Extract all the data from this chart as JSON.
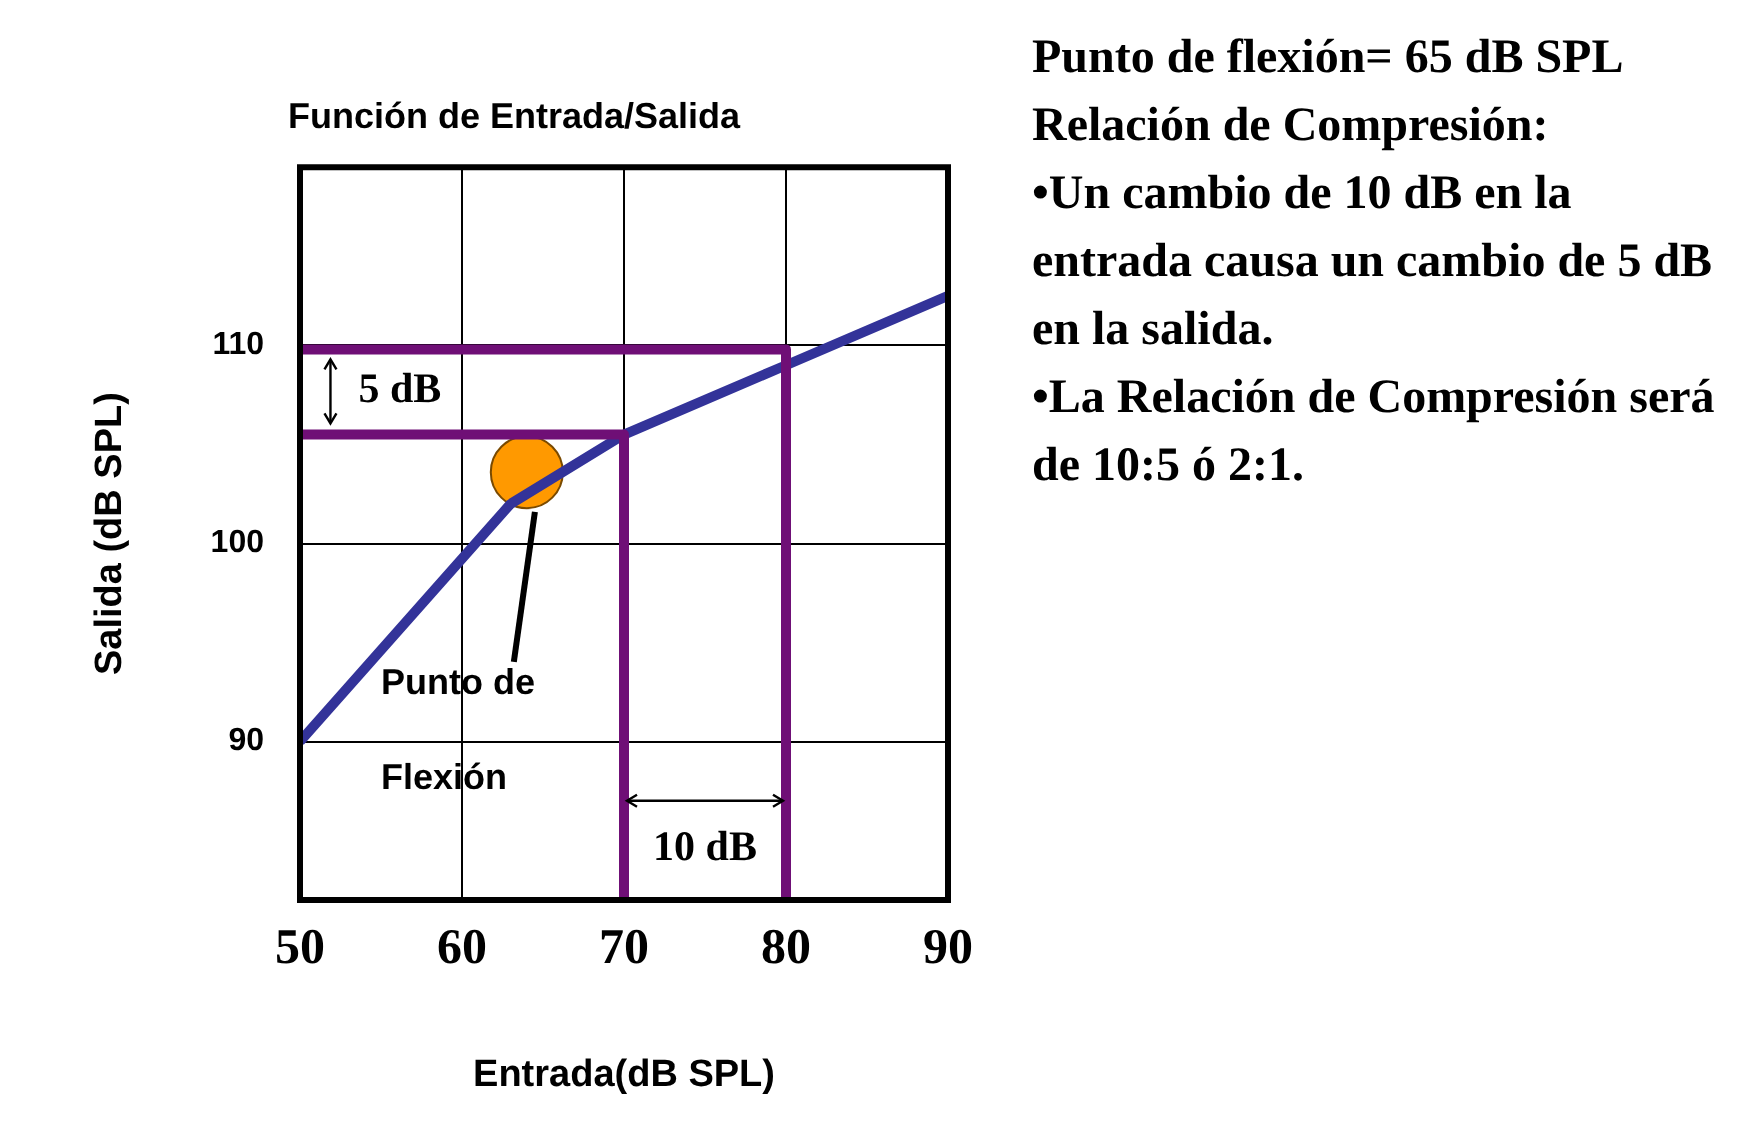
{
  "chart_data": {
    "type": "line",
    "title": "Función de Entrada/Salida",
    "xlabel": "Entrada(dB SPL)",
    "ylabel": "Salida (dB SPL)",
    "xlim": [
      50,
      90
    ],
    "xticks": [
      50,
      60,
      70,
      80,
      90
    ],
    "ylim": [
      82,
      119
    ],
    "yticks": [
      90,
      100,
      110
    ],
    "grid": true,
    "legend": false,
    "marker": "none",
    "line_style": "solid",
    "series": [
      {
        "color": "#6f0f76",
        "x": [
          50,
          80,
          80
        ],
        "values": [
          109.8,
          109.8,
          82
        ]
      },
      {
        "color": "#6f0f76",
        "x": [
          50,
          70,
          70
        ],
        "values": [
          105.5,
          105.5,
          82
        ]
      },
      {
        "color": "#333399",
        "x": [
          50,
          63,
          70,
          80,
          90
        ],
        "values": [
          90,
          102,
          105.5,
          109,
          112.5
        ]
      },
      {
        "type": "scatter",
        "marker": "circle",
        "color": "#ff9900",
        "x": [
          64
        ],
        "values": [
          103.6
        ]
      }
    ],
    "annotations": [
      "5 dB",
      "10 dB",
      {
        "text": "Punto de",
        "x": 64.5,
        "y": 101.6
      },
      "Flexión",
      "Punto de flexión= 65 dB SPL",
      "Relación de Compresión:",
      "•Un cambio de 10 dB en la entrada causa un cambio de 5 dB en la salida.",
      "•La  Relación de Compresión será de 10:5 ó 2:1."
    ]
  }
}
